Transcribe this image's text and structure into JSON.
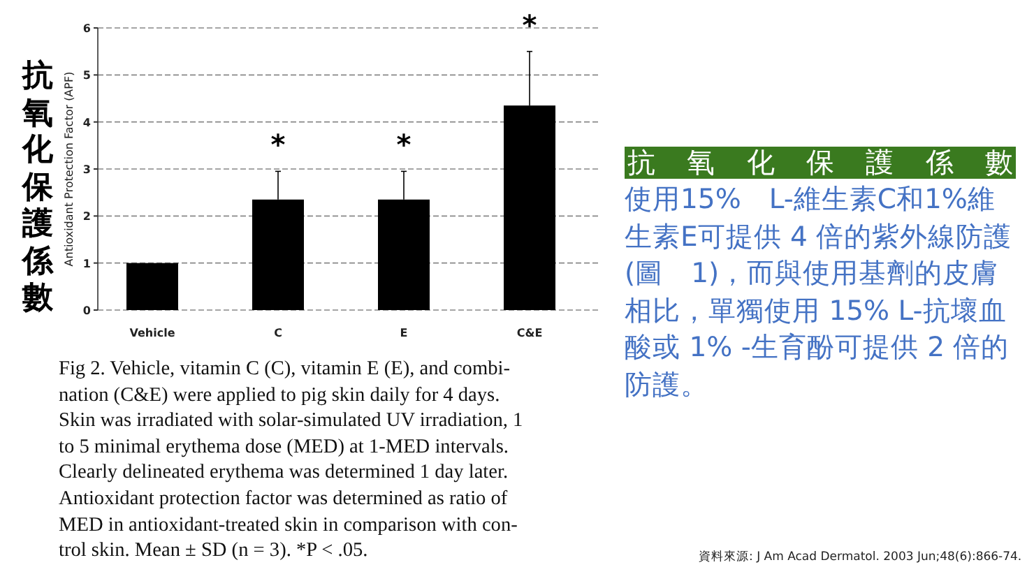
{
  "chart_data": {
    "type": "bar",
    "title": "抗氧化保護係數",
    "ylabel": "Antioxidant Protection Factor (APF)",
    "categories": [
      "Vehicle",
      "C",
      "E",
      "C&E"
    ],
    "values": [
      1.0,
      2.35,
      2.35,
      4.35
    ],
    "errors": [
      null,
      [
        2.35,
        2.95
      ],
      [
        2.35,
        2.95
      ],
      [
        4.35,
        5.5
      ]
    ],
    "color": "#000000",
    "ylim": [
      0,
      6
    ],
    "yticks": [
      0,
      1,
      2,
      3,
      4,
      5,
      6
    ],
    "grid": "y",
    "annotations": [
      "*",
      "*",
      "*",
      "Fig 2. Vehicle, vitamin C (C), vitamin E (E), and combi-\nnation (C&E) were applied to pig skin daily for 4 days.\nSkin was irradiated with solar-simulated UV irradiation, 1\nto 5 minimal erythema dose (MED) at 1-MED intervals.\nClearly delineated erythema was determined 1 day later.\nAntioxidant protection factor was determined as ratio of\nMED in antioxidant-treated skin in comparison with con-\ntrol skin. Mean ± SD (n = 3). *P < .05.",
      "抗 氧 化 保 護 係 數",
      "使用15%　L-維生素C和1%維生素E可提供 4 倍的紫外線防護(圖　1)，而與使用基劑的皮膚相比，單獨使用 15% L-抗壞血酸或 1% -生育酚可提供 2 倍的防護。",
      "資料來源: J Am Acad Dermatol. 2003 Jun;48(6):866-74."
    ]
  }
}
